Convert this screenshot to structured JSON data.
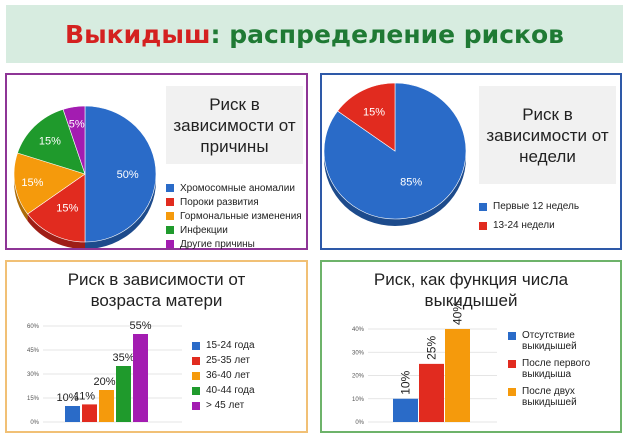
{
  "header": {
    "title_part1": "Выкидыш",
    "title_part2": ": распределение рисков"
  },
  "chart_data": [
    {
      "type": "pie",
      "title": "Риск в\nзависимости от\nпричины",
      "categories": [
        "Хромосомные аномалии",
        "Пороки развития",
        "Гормональные изменения",
        "Инфекции",
        "Другие причины"
      ],
      "values": [
        50,
        15,
        15,
        15,
        5
      ],
      "labels": [
        "50%",
        "15%",
        "15%",
        "15%",
        "5%"
      ],
      "colors": [
        "#2a6bc8",
        "#e12b1f",
        "#f59a0c",
        "#1f9a2c",
        "#a31cb1"
      ],
      "legend": "right"
    },
    {
      "type": "pie",
      "title": "Риск в\nзависимости от\nнедели",
      "categories": [
        "Первые 12 недель",
        "13-24 недели"
      ],
      "values": [
        85,
        15
      ],
      "labels": [
        "85%",
        "15%"
      ],
      "colors": [
        "#2a6bc8",
        "#e12b1f"
      ],
      "legend": "right"
    },
    {
      "type": "bar",
      "title": "Риск в зависимости от\nвозраста матери",
      "categories": [
        "15-24 года",
        "25-35 лет",
        "36-40 лет",
        "40-44 года",
        "> 45 лет"
      ],
      "values": [
        10,
        11,
        20,
        35,
        55
      ],
      "labels": [
        "10%",
        "11%",
        "20%",
        "35%",
        "55%"
      ],
      "colors": [
        "#2a6bc8",
        "#e12b1f",
        "#f59a0c",
        "#1f9a2c",
        "#a31cb1"
      ],
      "ylim": [
        0,
        60
      ],
      "yticks": [
        "0%",
        "15%",
        "30%",
        "45%",
        "60%"
      ],
      "grid": true,
      "legend": "right"
    },
    {
      "type": "bar",
      "title": "Риск, как функция числа\nвыкидышей",
      "categories": [
        "Отсутствие\nвыкидышей",
        "После первого\nвыкидыша",
        "После двух\nвыкидышей"
      ],
      "values": [
        10,
        25,
        40
      ],
      "labels": [
        "10%",
        "25%",
        "40%"
      ],
      "colors": [
        "#2a6bc8",
        "#e12b1f",
        "#f59a0c"
      ],
      "ylim": [
        0,
        40
      ],
      "yticks": [
        "0%",
        "10%",
        "20%",
        "30%",
        "40%"
      ],
      "grid": true,
      "legend": "right"
    }
  ]
}
